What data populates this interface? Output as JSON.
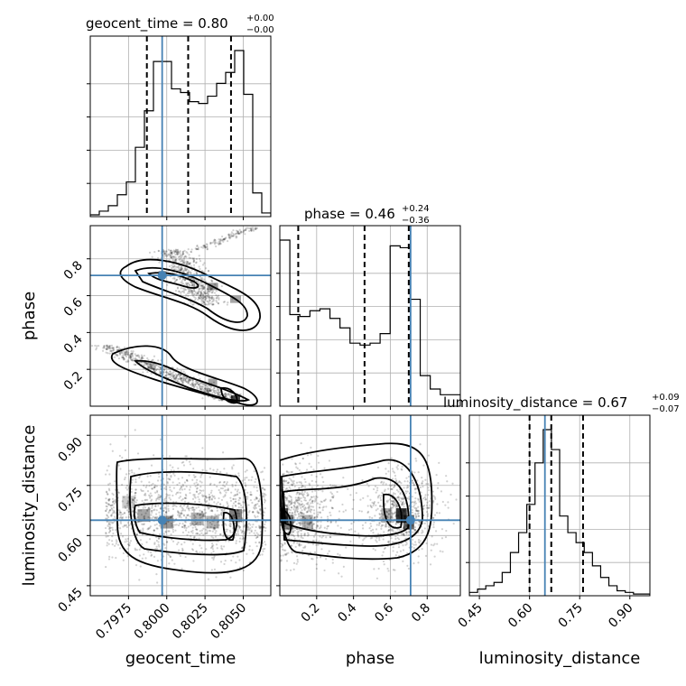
{
  "chart_data": {
    "type": "corner",
    "parameters": [
      {
        "name": "geocent_time",
        "axis_label": "geocent_time",
        "title_value": "0.80",
        "title_plus": "+0.00",
        "title_minus": "−0.00",
        "range": [
          0.795,
          0.8068
        ],
        "ticks": [
          0.7975,
          0.8,
          0.8025,
          0.805
        ],
        "tick_labels": [
          "0.7975",
          "0.8000",
          "0.8025",
          "0.8050"
        ],
        "truth": 0.7997,
        "quantiles": [
          0.7987,
          0.8014,
          0.8042
        ],
        "hist_bins": [
          0.795,
          0.7962
        ],
        "hist_values": [
          0.01,
          0.03,
          0.06,
          0.12,
          0.19,
          0.38,
          0.58,
          0.85,
          0.85,
          0.7,
          0.68,
          0.63,
          0.62,
          0.66,
          0.73,
          0.79,
          0.91,
          0.67,
          0.13,
          0.02
        ]
      },
      {
        "name": "phase",
        "axis_label": "phase",
        "title_value": "0.46",
        "title_plus": "+0.24",
        "title_minus": "−0.36",
        "range": [
          0.0,
          0.98
        ],
        "ticks": [
          0.2,
          0.4,
          0.6,
          0.8
        ],
        "tick_labels": [
          "0.2",
          "0.4",
          "0.6",
          "0.8"
        ],
        "truth": 0.71,
        "quantiles": [
          0.1,
          0.46,
          0.7
        ],
        "hist_values": [
          0.87,
          0.48,
          0.47,
          0.5,
          0.51,
          0.46,
          0.41,
          0.33,
          0.32,
          0.33,
          0.38,
          0.84,
          0.83,
          0.56,
          0.16,
          0.09,
          0.06,
          0.06
        ]
      },
      {
        "name": "luminosity_distance",
        "axis_label": "luminosity_distance",
        "title_value": "0.67",
        "title_plus": "+0.09",
        "title_minus": "−0.07",
        "range": [
          0.42,
          0.96
        ],
        "ticks": [
          0.45,
          0.6,
          0.75,
          0.9
        ],
        "tick_labels": [
          "0.45",
          "0.60",
          "0.75",
          "0.90"
        ],
        "truth": 0.646,
        "quantiles": [
          0.6,
          0.665,
          0.76
        ],
        "hist_values": [
          0.02,
          0.04,
          0.06,
          0.08,
          0.14,
          0.26,
          0.38,
          0.55,
          0.8,
          1.0,
          0.88,
          0.48,
          0.38,
          0.32,
          0.26,
          0.18,
          0.11,
          0.06,
          0.03,
          0.02,
          0.01,
          0.01
        ]
      }
    ],
    "truth_color": "#4682b4",
    "contour_color": "#000000",
    "grid": true
  }
}
